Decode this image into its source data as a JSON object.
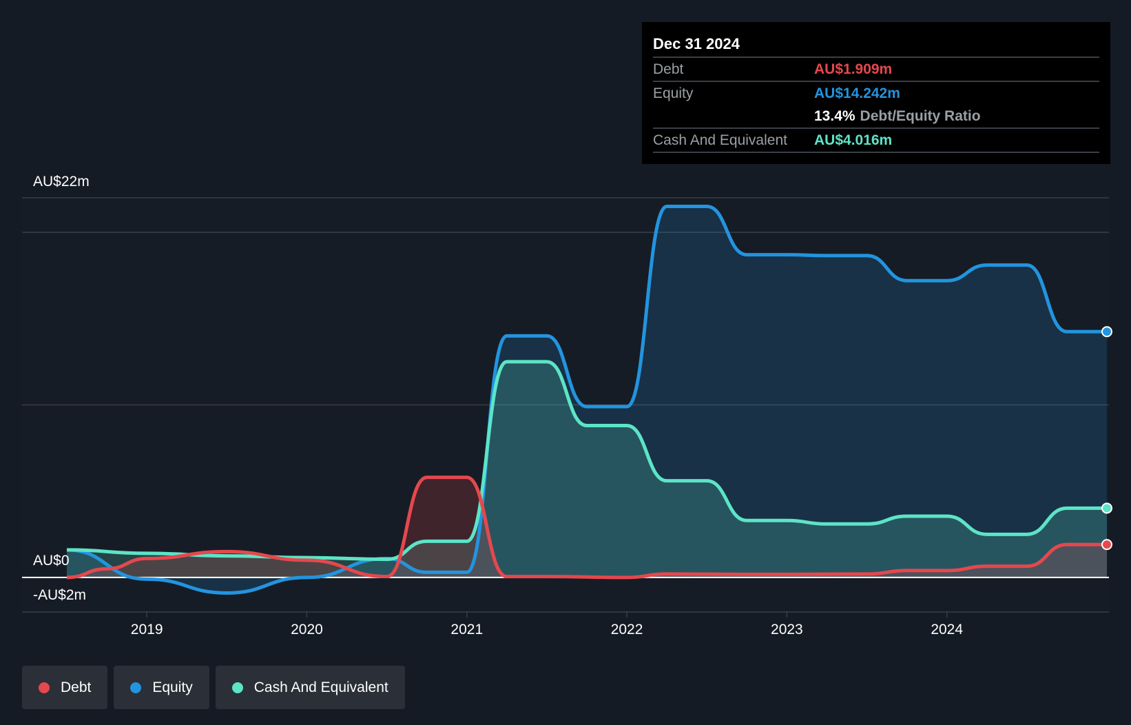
{
  "colors": {
    "debt": "#e5484d",
    "equity": "#2394df",
    "cash": "#5de4c7",
    "background": "#151b24",
    "grid": "#3a3f47"
  },
  "tooltip": {
    "date": "Dec 31 2024",
    "rows": [
      {
        "label": "Debt",
        "value": "AU$1.909m",
        "color": "#e5484d"
      },
      {
        "label": "Equity",
        "value": "AU$14.242m",
        "color": "#2394df"
      }
    ],
    "ratio_value": "13.4%",
    "ratio_label": "Debt/Equity Ratio",
    "cash_label": "Cash And Equivalent",
    "cash_value": "AU$4.016m",
    "cash_color": "#5de4c7"
  },
  "legend": [
    {
      "label": "Debt",
      "color": "#e5484d"
    },
    {
      "label": "Equity",
      "color": "#2394df"
    },
    {
      "label": "Cash And Equivalent",
      "color": "#5de4c7"
    }
  ],
  "chart_data": {
    "type": "area",
    "title": "",
    "xlabel": "",
    "ylabel": "",
    "y_tick_labels": [
      {
        "value": 22,
        "label": "AU$22m"
      },
      {
        "value": 0,
        "label": "AU$0"
      },
      {
        "value": -2,
        "label": "-AU$2m"
      }
    ],
    "x_tick_labels": [
      "2019",
      "2020",
      "2021",
      "2022",
      "2023",
      "2024"
    ],
    "x_ticks": [
      2019,
      2020,
      2021,
      2022,
      2023,
      2024
    ],
    "xlim": [
      2018.5,
      2025.0
    ],
    "ylim": [
      -2,
      22
    ],
    "grid": true,
    "legend_position": "bottom-left",
    "series": [
      {
        "name": "Debt",
        "color": "#e5484d",
        "points": [
          [
            2018.5,
            0.0
          ],
          [
            2018.75,
            0.5
          ],
          [
            2019.0,
            1.1
          ],
          [
            2019.5,
            1.5
          ],
          [
            2020.0,
            1.0
          ],
          [
            2020.5,
            0.05
          ],
          [
            2020.75,
            5.8
          ],
          [
            2021.0,
            5.8
          ],
          [
            2021.25,
            0.05
          ],
          [
            2021.5,
            0.05
          ],
          [
            2022.0,
            0.0
          ],
          [
            2022.25,
            0.2
          ],
          [
            2022.75,
            0.18
          ],
          [
            2023.0,
            0.18
          ],
          [
            2023.5,
            0.2
          ],
          [
            2023.75,
            0.4
          ],
          [
            2024.0,
            0.4
          ],
          [
            2024.25,
            0.65
          ],
          [
            2024.5,
            0.65
          ],
          [
            2024.75,
            1.909
          ],
          [
            2025.0,
            1.909
          ]
        ]
      },
      {
        "name": "Equity",
        "color": "#2394df",
        "points": [
          [
            2018.5,
            1.6
          ],
          [
            2019.0,
            -0.1
          ],
          [
            2019.5,
            -0.9
          ],
          [
            2020.0,
            0.0
          ],
          [
            2020.5,
            1.1
          ],
          [
            2020.75,
            0.3
          ],
          [
            2021.0,
            0.3
          ],
          [
            2021.25,
            14.0
          ],
          [
            2021.5,
            14.0
          ],
          [
            2021.75,
            9.9
          ],
          [
            2022.0,
            9.9
          ],
          [
            2022.25,
            21.5
          ],
          [
            2022.5,
            21.5
          ],
          [
            2022.75,
            18.7
          ],
          [
            2023.0,
            18.7
          ],
          [
            2023.25,
            18.65
          ],
          [
            2023.5,
            18.65
          ],
          [
            2023.75,
            17.2
          ],
          [
            2024.0,
            17.2
          ],
          [
            2024.25,
            18.1
          ],
          [
            2024.5,
            18.1
          ],
          [
            2024.75,
            14.242
          ],
          [
            2025.0,
            14.242
          ]
        ]
      },
      {
        "name": "Cash And Equivalent",
        "color": "#5de4c7",
        "points": [
          [
            2018.5,
            1.6
          ],
          [
            2019.0,
            1.4
          ],
          [
            2019.5,
            1.25
          ],
          [
            2020.0,
            1.15
          ],
          [
            2020.5,
            1.05
          ],
          [
            2020.75,
            2.1
          ],
          [
            2021.0,
            2.1
          ],
          [
            2021.25,
            12.5
          ],
          [
            2021.5,
            12.5
          ],
          [
            2021.75,
            8.8
          ],
          [
            2022.0,
            8.8
          ],
          [
            2022.25,
            5.6
          ],
          [
            2022.5,
            5.6
          ],
          [
            2022.75,
            3.3
          ],
          [
            2023.0,
            3.3
          ],
          [
            2023.25,
            3.1
          ],
          [
            2023.5,
            3.1
          ],
          [
            2023.75,
            3.55
          ],
          [
            2024.0,
            3.55
          ],
          [
            2024.25,
            2.5
          ],
          [
            2024.5,
            2.5
          ],
          [
            2024.75,
            4.016
          ],
          [
            2025.0,
            4.016
          ]
        ]
      }
    ]
  }
}
